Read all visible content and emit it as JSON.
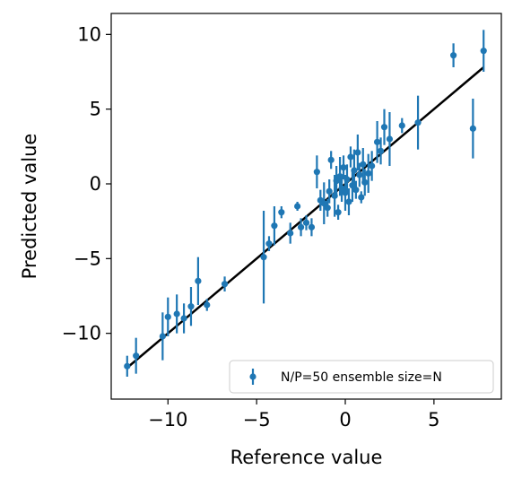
{
  "chart_data": {
    "type": "scatter",
    "title": "",
    "xlabel": "Reference value",
    "ylabel": "Predicted value",
    "xlim": [
      -13.2,
      8.8
    ],
    "ylim": [
      -14.4,
      11.4
    ],
    "grid": false,
    "legend_position": "lower-right",
    "x_ticks": [
      -10,
      -5,
      0,
      5
    ],
    "y_ticks": [
      -10,
      -5,
      0,
      5,
      10
    ],
    "x_tick_labels": [
      "−10",
      "−5",
      "0",
      "5"
    ],
    "y_tick_labels": [
      "−10",
      "−5",
      "0",
      "5",
      "10"
    ],
    "reference_line": {
      "x": [
        -12.3,
        7.8
      ],
      "y": [
        -12.3,
        7.8
      ],
      "color": "#000000"
    },
    "series": [
      {
        "name": "N/P=50 ensemble size=N",
        "color": "#1f77b4",
        "points": [
          {
            "x": -12.3,
            "y": -12.2,
            "err": 0.7
          },
          {
            "x": -11.8,
            "y": -11.5,
            "err": 1.2
          },
          {
            "x": -10.3,
            "y": -10.2,
            "err": 1.6
          },
          {
            "x": -10.0,
            "y": -8.9,
            "err": 1.3
          },
          {
            "x": -9.5,
            "y": -8.7,
            "err": 1.3
          },
          {
            "x": -9.1,
            "y": -9.0,
            "err": 1.0
          },
          {
            "x": -8.7,
            "y": -8.2,
            "err": 1.3
          },
          {
            "x": -8.3,
            "y": -6.5,
            "err": 1.6
          },
          {
            "x": -7.8,
            "y": -8.1,
            "err": 0.4
          },
          {
            "x": -6.8,
            "y": -6.7,
            "err": 0.5
          },
          {
            "x": -4.6,
            "y": -4.9,
            "err": 3.1
          },
          {
            "x": -4.3,
            "y": -4.0,
            "err": 0.5
          },
          {
            "x": -4.0,
            "y": -2.8,
            "err": 1.3
          },
          {
            "x": -3.6,
            "y": -1.9,
            "err": 0.4
          },
          {
            "x": -3.1,
            "y": -3.3,
            "err": 0.7
          },
          {
            "x": -2.7,
            "y": -1.5,
            "err": 0.3
          },
          {
            "x": -2.5,
            "y": -2.9,
            "err": 0.6
          },
          {
            "x": -2.2,
            "y": -2.6,
            "err": 0.5
          },
          {
            "x": -1.9,
            "y": -2.9,
            "err": 0.6
          },
          {
            "x": -1.6,
            "y": 0.8,
            "err": 1.1
          },
          {
            "x": -1.4,
            "y": -1.1,
            "err": 0.7
          },
          {
            "x": -1.2,
            "y": -1.3,
            "err": 1.4
          },
          {
            "x": -1.0,
            "y": -1.6,
            "err": 0.6
          },
          {
            "x": -0.9,
            "y": -0.5,
            "err": 0.8
          },
          {
            "x": -0.8,
            "y": 1.6,
            "err": 0.6
          },
          {
            "x": -0.6,
            "y": -0.8,
            "err": 1.4
          },
          {
            "x": -0.5,
            "y": 0.2,
            "err": 1.0
          },
          {
            "x": -0.4,
            "y": -1.9,
            "err": 0.5
          },
          {
            "x": -0.3,
            "y": 0.5,
            "err": 1.3
          },
          {
            "x": -0.2,
            "y": -0.3,
            "err": 0.9
          },
          {
            "x": -0.1,
            "y": 1.1,
            "err": 0.8
          },
          {
            "x": 0.0,
            "y": -0.6,
            "err": 1.2
          },
          {
            "x": 0.1,
            "y": 0.3,
            "err": 1.0
          },
          {
            "x": 0.2,
            "y": -1.2,
            "err": 0.9
          },
          {
            "x": 0.3,
            "y": 1.8,
            "err": 0.7
          },
          {
            "x": 0.4,
            "y": -0.1,
            "err": 1.1
          },
          {
            "x": 0.5,
            "y": 0.9,
            "err": 1.4
          },
          {
            "x": 0.6,
            "y": -0.4,
            "err": 0.6
          },
          {
            "x": 0.7,
            "y": 2.1,
            "err": 1.2
          },
          {
            "x": 0.8,
            "y": 0.6,
            "err": 0.8
          },
          {
            "x": 0.9,
            "y": -0.9,
            "err": 0.4
          },
          {
            "x": 1.0,
            "y": 1.3,
            "err": 1.1
          },
          {
            "x": 1.1,
            "y": 0.1,
            "err": 0.9
          },
          {
            "x": 1.3,
            "y": 0.7,
            "err": 1.3
          },
          {
            "x": 1.5,
            "y": 1.2,
            "err": 1.0
          },
          {
            "x": 1.8,
            "y": 2.8,
            "err": 1.4
          },
          {
            "x": 2.0,
            "y": 2.2,
            "err": 0.9
          },
          {
            "x": 2.2,
            "y": 3.8,
            "err": 1.2
          },
          {
            "x": 2.5,
            "y": 3.0,
            "err": 1.8
          },
          {
            "x": 3.2,
            "y": 3.9,
            "err": 0.5
          },
          {
            "x": 4.1,
            "y": 4.1,
            "err": 1.8
          },
          {
            "x": 6.1,
            "y": 8.6,
            "err": 0.8
          },
          {
            "x": 7.2,
            "y": 3.7,
            "err": 2.0
          },
          {
            "x": 7.8,
            "y": 8.9,
            "err": 1.4
          }
        ]
      }
    ]
  }
}
